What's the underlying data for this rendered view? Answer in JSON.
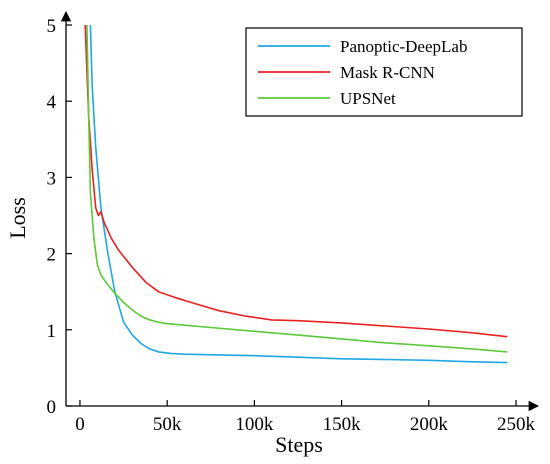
{
  "chart_data": {
    "type": "line",
    "xlabel": "Steps",
    "ylabel": "Loss",
    "xlim": [
      -8000,
      258000
    ],
    "ylim": [
      0,
      5
    ],
    "x_ticks": [
      0,
      50000,
      100000,
      150000,
      200000,
      250000
    ],
    "x_tick_labels": [
      "0",
      "50k",
      "100k",
      "150k",
      "200k",
      "250k"
    ],
    "y_ticks": [
      0,
      1,
      2,
      3,
      4,
      5
    ],
    "y_tick_labels": [
      "0",
      "1",
      "2",
      "3",
      "4",
      "5"
    ],
    "legend_position": "top-right",
    "series": [
      {
        "name": "Panoptic-DeepLab",
        "color": "#1fa8e0",
        "x": [
          6000,
          7000,
          9000,
          12000,
          16000,
          20000,
          25000,
          30000,
          35000,
          40000,
          45000,
          52000,
          60000,
          80000,
          100000,
          125000,
          150000,
          175000,
          200000,
          225000,
          245000
        ],
        "y": [
          5.0,
          4.2,
          3.4,
          2.6,
          2.0,
          1.5,
          1.1,
          0.93,
          0.82,
          0.75,
          0.71,
          0.69,
          0.68,
          0.67,
          0.66,
          0.64,
          0.62,
          0.61,
          0.6,
          0.58,
          0.57
        ]
      },
      {
        "name": "Mask R-CNN",
        "color": "#e82222",
        "x": [
          3000,
          4000,
          5000,
          7000,
          9000,
          10500,
          12000,
          14000,
          18000,
          22000,
          30000,
          38000,
          45000,
          55000,
          65000,
          80000,
          95000,
          110000,
          125000,
          150000,
          175000,
          200000,
          225000,
          245000
        ],
        "y": [
          5.0,
          4.4,
          3.8,
          3.1,
          2.6,
          2.5,
          2.55,
          2.4,
          2.2,
          2.05,
          1.82,
          1.62,
          1.5,
          1.42,
          1.35,
          1.25,
          1.18,
          1.13,
          1.12,
          1.09,
          1.05,
          1.01,
          0.96,
          0.91
        ]
      },
      {
        "name": "UPSNet",
        "color": "#5cc83a",
        "x": [
          4000,
          5000,
          6000,
          8000,
          10000,
          12000,
          15000,
          20000,
          25000,
          30000,
          35000,
          40000,
          45000,
          50000,
          60000,
          75000,
          100000,
          125000,
          150000,
          175000,
          200000,
          225000,
          245000
        ],
        "y": [
          5.0,
          3.8,
          2.8,
          2.2,
          1.85,
          1.72,
          1.62,
          1.48,
          1.36,
          1.26,
          1.18,
          1.13,
          1.1,
          1.08,
          1.06,
          1.03,
          0.98,
          0.93,
          0.88,
          0.83,
          0.79,
          0.75,
          0.71
        ]
      }
    ]
  }
}
